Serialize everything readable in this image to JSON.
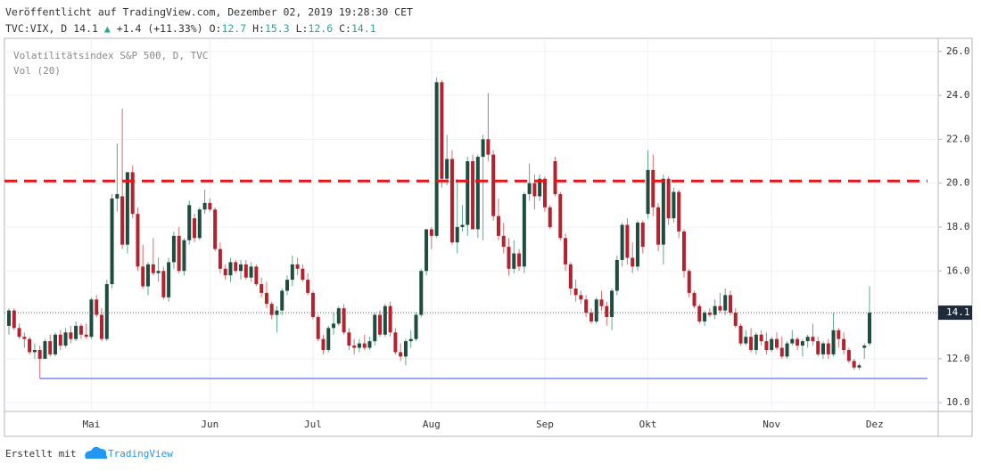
{
  "header": {
    "published": "Veröffentlicht auf TradingView.com, Dezember 02, 2019 19:28:30 CET",
    "symbol": "TVC:VIX, D",
    "last": "14.1",
    "arrow": "▲",
    "change": "+1.4 (+11.33%)",
    "ohlc": [
      {
        "label": "O:",
        "value": "12.7"
      },
      {
        "label": "H:",
        "value": "15.3"
      },
      {
        "label": "L:",
        "value": "12.6"
      },
      {
        "label": "C:",
        "value": "14.1"
      }
    ]
  },
  "chart_data": {
    "type": "candlestick",
    "legend": [
      "Volatilitätsindex S&P 500, D, TVC",
      "Vol (20)"
    ],
    "up_color": "#1e4d3f",
    "down_color": "#b3232f",
    "up_wick": "#5fa88a",
    "down_wick": "#e06a6a",
    "ylim": [
      9.6,
      26.6
    ],
    "yticks": [
      {
        "value": 10,
        "label": "10.0"
      },
      {
        "value": 12,
        "label": "12.0"
      },
      {
        "value": 14,
        "label": "14.0"
      },
      {
        "value": 16,
        "label": "16.0"
      },
      {
        "value": 18,
        "label": "18.0"
      },
      {
        "value": 20,
        "label": "20.0"
      },
      {
        "value": 22,
        "label": "22.0"
      },
      {
        "value": 24,
        "label": "24.0"
      },
      {
        "value": 26,
        "label": "26.0"
      }
    ],
    "grid": true,
    "last_price": 14.1,
    "hlines": [
      {
        "value": 20.1,
        "color": "#e8141a",
        "style": "dashed"
      },
      {
        "value": 11.1,
        "color": "#5b6cf0",
        "style": "solid"
      }
    ],
    "categories": [
      null,
      null,
      null,
      null,
      null,
      null,
      null,
      null,
      null,
      null,
      null,
      null,
      null,
      null,
      null,
      null,
      "Mai",
      null,
      null,
      null,
      null,
      null,
      null,
      null,
      null,
      null,
      null,
      null,
      null,
      null,
      null,
      null,
      null,
      null,
      null,
      null,
      null,
      null,
      null,
      "Jun",
      null,
      null,
      null,
      null,
      null,
      null,
      null,
      null,
      null,
      null,
      null,
      null,
      null,
      null,
      null,
      null,
      null,
      null,
      null,
      "Jul",
      null,
      null,
      null,
      null,
      null,
      null,
      null,
      null,
      null,
      null,
      null,
      null,
      null,
      null,
      null,
      null,
      null,
      null,
      null,
      null,
      null,
      null,
      "Aug",
      null,
      null,
      null,
      null,
      null,
      null,
      null,
      null,
      null,
      null,
      null,
      null,
      null,
      null,
      null,
      null,
      null,
      null,
      null,
      null,
      null,
      "Sep",
      null,
      null,
      null,
      null,
      null,
      null,
      null,
      null,
      null,
      null,
      null,
      null,
      null,
      null,
      null,
      null,
      null,
      null,
      null,
      "Okt",
      null,
      null,
      null,
      null,
      null,
      null,
      null,
      null,
      null,
      null,
      null,
      null,
      null,
      null,
      null,
      null,
      null,
      null,
      null,
      null,
      null,
      null,
      null,
      "Nov",
      null,
      null,
      null,
      null,
      null,
      null,
      null,
      null,
      null,
      null,
      null,
      null,
      null,
      null,
      null,
      null,
      null,
      null,
      null,
      "Dez"
    ],
    "ohlc": [
      [
        13.5,
        14.3,
        13.1,
        14.2
      ],
      [
        14.2,
        14.3,
        13.3,
        13.4
      ],
      [
        13.4,
        13.6,
        12.9,
        13.0
      ],
      [
        13.0,
        13.2,
        12.5,
        12.9
      ],
      [
        12.9,
        13.0,
        12.2,
        12.3
      ],
      [
        12.3,
        12.7,
        12.0,
        12.4
      ],
      [
        12.4,
        12.6,
        11.1,
        12.0
      ],
      [
        12.0,
        12.9,
        12.0,
        12.8
      ],
      [
        12.8,
        13.1,
        12.1,
        12.2
      ],
      [
        12.2,
        13.2,
        12.1,
        13.1
      ],
      [
        13.1,
        13.3,
        12.4,
        12.6
      ],
      [
        12.6,
        13.4,
        12.5,
        13.2
      ],
      [
        13.2,
        13.5,
        12.7,
        12.9
      ],
      [
        12.9,
        13.7,
        12.8,
        13.5
      ],
      [
        13.5,
        13.6,
        12.9,
        13.1
      ],
      [
        13.1,
        13.6,
        12.9,
        13.0
      ],
      [
        13.0,
        14.8,
        12.9,
        14.7
      ],
      [
        14.7,
        14.9,
        13.9,
        14.0
      ],
      [
        14.0,
        14.3,
        12.8,
        12.9
      ],
      [
        12.9,
        15.6,
        12.8,
        15.4
      ],
      [
        15.4,
        19.5,
        15.2,
        19.3
      ],
      [
        19.3,
        21.8,
        18.7,
        19.5
      ],
      [
        19.4,
        23.4,
        17.0,
        17.2
      ],
      [
        17.2,
        20.5,
        16.8,
        20.5
      ],
      [
        20.5,
        20.8,
        18.4,
        18.6
      ],
      [
        18.6,
        18.9,
        16.0,
        16.2
      ],
      [
        16.2,
        17.2,
        15.2,
        15.3
      ],
      [
        15.3,
        16.4,
        14.9,
        16.3
      ],
      [
        16.3,
        17.5,
        15.8,
        15.9
      ],
      [
        15.9,
        16.6,
        15.5,
        16.0
      ],
      [
        16.0,
        16.2,
        14.7,
        14.8
      ],
      [
        14.8,
        16.6,
        14.6,
        16.4
      ],
      [
        16.4,
        17.8,
        16.1,
        17.6
      ],
      [
        17.6,
        18.0,
        15.9,
        16.0
      ],
      [
        16.0,
        17.5,
        15.8,
        17.4
      ],
      [
        17.4,
        19.2,
        17.2,
        19.0
      ],
      [
        18.4,
        18.6,
        17.3,
        17.5
      ],
      [
        17.5,
        18.9,
        17.4,
        18.8
      ],
      [
        18.8,
        19.7,
        18.6,
        19.1
      ],
      [
        19.1,
        19.3,
        18.7,
        18.8
      ],
      [
        18.8,
        18.9,
        16.9,
        17.0
      ],
      [
        17.0,
        17.3,
        15.9,
        16.1
      ],
      [
        16.1,
        16.3,
        15.6,
        15.8
      ],
      [
        15.8,
        16.6,
        15.5,
        16.4
      ],
      [
        16.4,
        16.5,
        15.9,
        16.0
      ],
      [
        16.0,
        16.5,
        15.6,
        16.3
      ],
      [
        16.3,
        16.5,
        15.6,
        15.7
      ],
      [
        15.7,
        16.4,
        15.5,
        16.2
      ],
      [
        16.2,
        16.3,
        15.3,
        15.4
      ],
      [
        15.4,
        15.7,
        14.8,
        15.0
      ],
      [
        15.0,
        15.5,
        14.3,
        14.5
      ],
      [
        14.5,
        14.6,
        13.8,
        14.0
      ],
      [
        14.0,
        14.4,
        13.2,
        14.2
      ],
      [
        14.2,
        15.2,
        14.0,
        15.1
      ],
      [
        15.1,
        15.8,
        14.9,
        15.6
      ],
      [
        15.6,
        16.7,
        15.3,
        16.3
      ],
      [
        16.3,
        16.6,
        15.8,
        16.1
      ],
      [
        16.1,
        16.3,
        15.5,
        15.6
      ],
      [
        15.6,
        15.9,
        14.9,
        15.0
      ],
      [
        15.0,
        15.1,
        13.8,
        13.9
      ],
      [
        13.9,
        14.0,
        12.8,
        12.9
      ],
      [
        12.9,
        13.1,
        12.2,
        12.4
      ],
      [
        12.4,
        13.5,
        12.3,
        13.4
      ],
      [
        13.4,
        14.1,
        13.1,
        13.6
      ],
      [
        13.6,
        14.4,
        13.5,
        14.3
      ],
      [
        14.3,
        14.5,
        13.1,
        13.2
      ],
      [
        13.2,
        13.4,
        12.4,
        12.6
      ],
      [
        12.6,
        12.9,
        12.2,
        12.5
      ],
      [
        12.5,
        12.9,
        12.3,
        12.7
      ],
      [
        12.7,
        13.1,
        12.4,
        12.5
      ],
      [
        12.5,
        13.0,
        12.4,
        12.8
      ],
      [
        12.8,
        14.1,
        12.6,
        14.0
      ],
      [
        14.0,
        14.2,
        13.0,
        13.1
      ],
      [
        13.1,
        14.5,
        13.0,
        14.4
      ],
      [
        14.4,
        14.6,
        13.0,
        13.2
      ],
      [
        13.2,
        13.4,
        12.2,
        12.3
      ],
      [
        12.3,
        12.7,
        11.9,
        12.1
      ],
      [
        12.1,
        12.9,
        11.7,
        12.8
      ],
      [
        12.8,
        13.3,
        12.5,
        12.9
      ],
      [
        12.9,
        14.1,
        12.8,
        14.0
      ],
      [
        14.0,
        16.1,
        13.9,
        16.0
      ],
      [
        16.0,
        17.9,
        15.8,
        17.9
      ],
      [
        17.9,
        18.0,
        17.0,
        17.6
      ],
      [
        17.6,
        24.8,
        17.5,
        24.6
      ],
      [
        24.6,
        24.7,
        19.8,
        20.2
      ],
      [
        20.2,
        22.2,
        19.9,
        21.1
      ],
      [
        21.1,
        21.5,
        17.2,
        17.3
      ],
      [
        17.3,
        20.2,
        16.8,
        18.0
      ],
      [
        18.0,
        19.0,
        17.8,
        18.1
      ],
      [
        18.1,
        21.2,
        17.6,
        21.0
      ],
      [
        21.0,
        21.3,
        17.9,
        17.9
      ],
      [
        17.9,
        21.3,
        17.5,
        21.2
      ],
      [
        21.2,
        22.2,
        17.4,
        22.0
      ],
      [
        22.0,
        24.1,
        21.0,
        21.3
      ],
      [
        21.3,
        21.5,
        18.3,
        18.5
      ],
      [
        18.5,
        19.3,
        17.4,
        17.6
      ],
      [
        17.6,
        18.2,
        16.8,
        17.1
      ],
      [
        17.1,
        17.5,
        15.8,
        16.1
      ],
      [
        16.1,
        17.4,
        15.9,
        16.8
      ],
      [
        16.8,
        17.0,
        16.0,
        16.2
      ],
      [
        16.2,
        19.6,
        15.9,
        19.5
      ],
      [
        19.5,
        20.9,
        19.2,
        20.0
      ],
      [
        20.0,
        20.4,
        18.8,
        19.4
      ],
      [
        19.4,
        20.4,
        19.2,
        20.2
      ],
      [
        20.2,
        20.3,
        18.7,
        18.9
      ],
      [
        18.9,
        19.0,
        17.9,
        18.0
      ],
      [
        21.0,
        21.2,
        19.4,
        19.5
      ],
      [
        19.5,
        19.6,
        17.4,
        17.5
      ],
      [
        17.5,
        17.7,
        16.0,
        16.3
      ],
      [
        16.3,
        16.4,
        14.9,
        15.2
      ],
      [
        15.2,
        15.6,
        14.6,
        14.9
      ],
      [
        14.9,
        15.1,
        14.5,
        14.7
      ],
      [
        14.7,
        14.9,
        13.9,
        14.1
      ],
      [
        14.1,
        14.3,
        13.6,
        13.7
      ],
      [
        13.7,
        14.8,
        13.6,
        14.7
      ],
      [
        14.7,
        15.1,
        14.2,
        14.4
      ],
      [
        14.4,
        14.6,
        13.5,
        13.9
      ],
      [
        13.9,
        15.2,
        13.3,
        15.1
      ],
      [
        15.1,
        16.7,
        14.9,
        16.5
      ],
      [
        16.5,
        18.2,
        16.2,
        18.1
      ],
      [
        18.1,
        18.4,
        16.3,
        16.6
      ],
      [
        16.6,
        17.3,
        15.9,
        16.2
      ],
      [
        16.2,
        18.3,
        16.0,
        18.2
      ],
      [
        18.2,
        18.3,
        16.8,
        17.1
      ],
      [
        18.6,
        21.5,
        18.4,
        20.6
      ],
      [
        20.6,
        21.3,
        18.5,
        18.9
      ],
      [
        18.9,
        19.1,
        16.9,
        17.2
      ],
      [
        17.2,
        20.4,
        16.3,
        20.2
      ],
      [
        20.2,
        20.3,
        18.1,
        18.4
      ],
      [
        18.4,
        19.8,
        18.2,
        19.6
      ],
      [
        19.6,
        19.7,
        17.5,
        17.8
      ],
      [
        17.8,
        17.9,
        15.7,
        16.0
      ],
      [
        16.0,
        16.1,
        14.8,
        15.0
      ],
      [
        15.0,
        15.1,
        14.3,
        14.4
      ],
      [
        14.4,
        14.5,
        13.6,
        13.7
      ],
      [
        13.7,
        14.2,
        13.5,
        14.1
      ],
      [
        14.1,
        14.3,
        13.9,
        14.0
      ],
      [
        14.0,
        14.7,
        13.8,
        14.4
      ],
      [
        14.4,
        15.0,
        14.1,
        14.2
      ],
      [
        14.2,
        15.2,
        14.0,
        14.9
      ],
      [
        14.9,
        15.1,
        14.0,
        14.1
      ],
      [
        14.1,
        14.3,
        13.4,
        13.5
      ],
      [
        13.5,
        13.6,
        12.6,
        12.7
      ],
      [
        12.7,
        13.3,
        12.6,
        13.0
      ],
      [
        13.0,
        13.4,
        12.3,
        12.4
      ],
      [
        12.4,
        13.2,
        12.2,
        13.1
      ],
      [
        13.1,
        13.3,
        12.6,
        12.8
      ],
      [
        12.8,
        13.2,
        12.2,
        12.4
      ],
      [
        12.4,
        13.0,
        12.3,
        12.9
      ],
      [
        12.9,
        13.2,
        12.4,
        12.5
      ],
      [
        12.5,
        13.0,
        12.0,
        12.1
      ],
      [
        12.1,
        12.8,
        12.0,
        12.7
      ],
      [
        12.7,
        13.3,
        12.6,
        12.9
      ],
      [
        12.9,
        13.0,
        12.4,
        12.6
      ],
      [
        12.6,
        12.9,
        12.1,
        12.8
      ],
      [
        12.8,
        13.1,
        12.5,
        13.0
      ],
      [
        13.0,
        13.6,
        12.6,
        12.8
      ],
      [
        12.8,
        13.0,
        12.1,
        12.2
      ],
      [
        12.2,
        12.8,
        12.0,
        12.7
      ],
      [
        12.7,
        12.9,
        12.0,
        12.2
      ],
      [
        12.2,
        14.1,
        12.1,
        13.3
      ],
      [
        13.3,
        13.4,
        12.5,
        12.9
      ],
      [
        12.9,
        13.2,
        12.2,
        12.4
      ],
      [
        12.4,
        12.5,
        11.8,
        11.9
      ],
      [
        11.9,
        12.0,
        11.5,
        11.6
      ],
      [
        11.6,
        11.8,
        11.5,
        11.7
      ],
      [
        12.5,
        12.7,
        12.0,
        12.6
      ],
      [
        12.7,
        15.3,
        12.6,
        14.1
      ]
    ]
  },
  "footer": {
    "made_with": "Erstellt mit",
    "brand": "TradingView"
  }
}
